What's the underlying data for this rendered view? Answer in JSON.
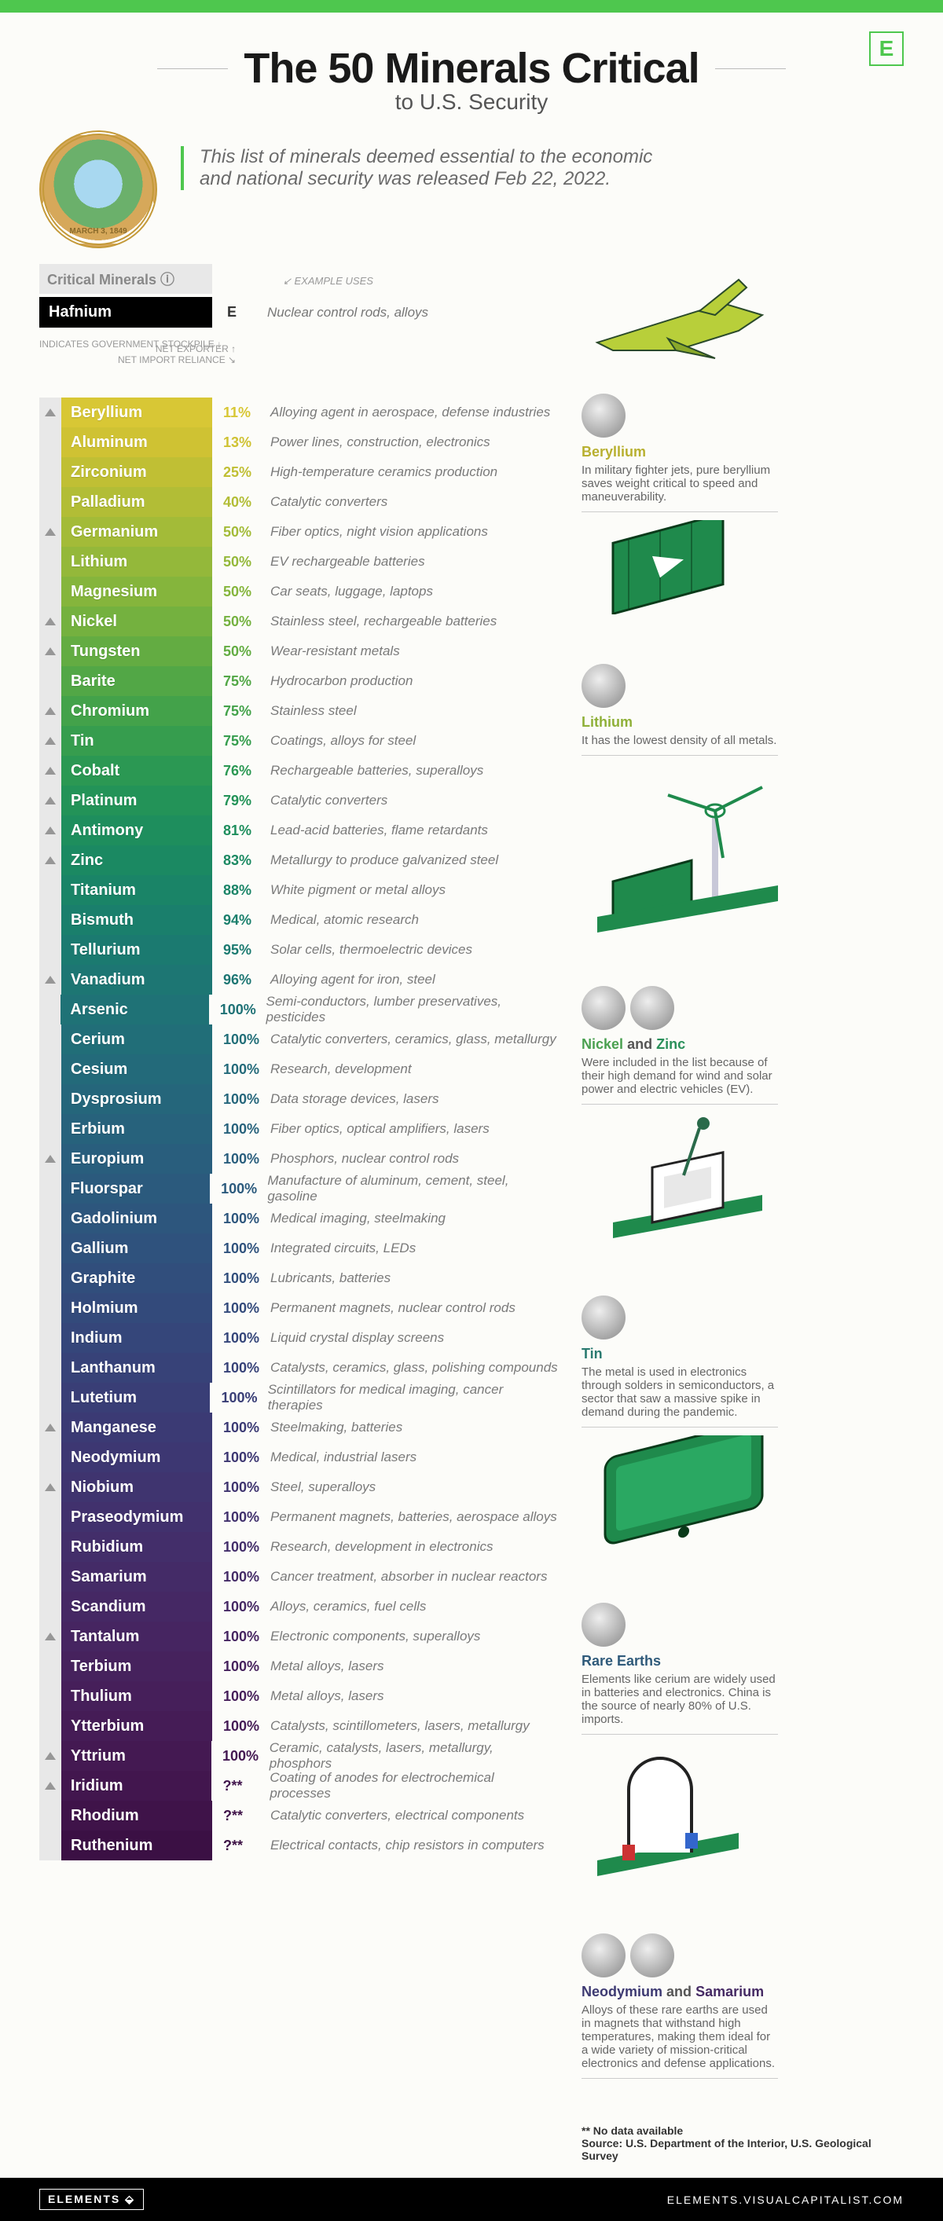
{
  "header": {
    "title": "The 50 Minerals Critical",
    "subtitle": "to U.S. Security",
    "intro": "This list of minerals deemed essential to the economic and national security was released Feb 22, 2022.",
    "seal_text": "MARCH 3, 1849",
    "logo_letter": "E"
  },
  "legend": {
    "tab": "Critical Minerals ⓘ",
    "example_uses_label": "EXAMPLE USES",
    "stockpile_label": "INDICATES\nGOVERNMENT\nSTOCKPILE\n↓",
    "net_exporter_label": "NET EXPORTER ↑",
    "net_import_label": "NET IMPORT RELIANCE ↘"
  },
  "example_row": {
    "name": "Hafnium",
    "badge": "E",
    "use": "Nuclear control rods, alloys"
  },
  "rows": [
    {
      "name": "Beryllium",
      "pct": "11%",
      "use": "Alloying agent in aerospace, defense industries",
      "color": "#d8c735",
      "stock": true
    },
    {
      "name": "Aluminum",
      "pct": "13%",
      "use": "Power lines, construction, electronics",
      "color": "#cfc233",
      "stock": false
    },
    {
      "name": "Zirconium",
      "pct": "25%",
      "use": "High-temperature ceramics production",
      "color": "#c0bf34",
      "stock": false
    },
    {
      "name": "Palladium",
      "pct": "40%",
      "use": "Catalytic converters",
      "color": "#b2bd36",
      "stock": false
    },
    {
      "name": "Germanium",
      "pct": "50%",
      "use": "Fiber optics, night vision applications",
      "color": "#a3bb38",
      "stock": true
    },
    {
      "name": "Lithium",
      "pct": "50%",
      "use": "EV rechargeable batteries",
      "color": "#94b83a",
      "stock": false
    },
    {
      "name": "Magnesium",
      "pct": "50%",
      "use": "Car seats, luggage, laptops",
      "color": "#85b53c",
      "stock": false
    },
    {
      "name": "Nickel",
      "pct": "50%",
      "use": "Stainless steel, rechargeable batteries",
      "color": "#74b13f",
      "stock": true
    },
    {
      "name": "Tungsten",
      "pct": "50%",
      "use": "Wear-resistant metals",
      "color": "#63ac42",
      "stock": true
    },
    {
      "name": "Barite",
      "pct": "75%",
      "use": "Hydrocarbon production",
      "color": "#52a746",
      "stock": false
    },
    {
      "name": "Chromium",
      "pct": "75%",
      "use": "Stainless steel",
      "color": "#43a24a",
      "stock": true
    },
    {
      "name": "Tin",
      "pct": "75%",
      "use": "Coatings, alloys for steel",
      "color": "#369d4e",
      "stock": true
    },
    {
      "name": "Cobalt",
      "pct": "76%",
      "use": "Rechargeable batteries, superalloys",
      "color": "#2b9853",
      "stock": true
    },
    {
      "name": "Platinum",
      "pct": "79%",
      "use": "Catalytic converters",
      "color": "#239358",
      "stock": true
    },
    {
      "name": "Antimony",
      "pct": "81%",
      "use": "Lead-acid batteries, flame retardants",
      "color": "#1e8e5d",
      "stock": true
    },
    {
      "name": "Zinc",
      "pct": "83%",
      "use": "Metallurgy to produce galvanized steel",
      "color": "#1b8962",
      "stock": true
    },
    {
      "name": "Titanium",
      "pct": "88%",
      "use": "White pigment or metal alloys",
      "color": "#1a8467",
      "stock": false
    },
    {
      "name": "Bismuth",
      "pct": "94%",
      "use": "Medical, atomic research",
      "color": "#1a7f6c",
      "stock": false
    },
    {
      "name": "Tellurium",
      "pct": "95%",
      "use": "Solar cells, thermoelectric devices",
      "color": "#1b7a70",
      "stock": false
    },
    {
      "name": "Vanadium",
      "pct": "96%",
      "use": "Alloying agent for iron, steel",
      "color": "#1d7673",
      "stock": true
    },
    {
      "name": "Arsenic",
      "pct": "100%",
      "use": "Semi-conductors, lumber preservatives, pesticides",
      "color": "#1f7276",
      "stock": false
    },
    {
      "name": "Cerium",
      "pct": "100%",
      "use": "Catalytic converters, ceramics, glass, metallurgy",
      "color": "#216e78",
      "stock": false
    },
    {
      "name": "Cesium",
      "pct": "100%",
      "use": "Research, development",
      "color": "#236a7a",
      "stock": false
    },
    {
      "name": "Dysprosium",
      "pct": "100%",
      "use": "Data storage devices, lasers",
      "color": "#25667b",
      "stock": false
    },
    {
      "name": "Erbium",
      "pct": "100%",
      "use": "Fiber optics, optical amplifiers, lasers",
      "color": "#27627c",
      "stock": false
    },
    {
      "name": "Europium",
      "pct": "100%",
      "use": "Phosphors, nuclear control rods",
      "color": "#295e7d",
      "stock": true
    },
    {
      "name": "Fluorspar",
      "pct": "100%",
      "use": "Manufacture of aluminum, cement, steel, gasoline",
      "color": "#2b5a7d",
      "stock": false
    },
    {
      "name": "Gadolinium",
      "pct": "100%",
      "use": "Medical imaging, steelmaking",
      "color": "#2d567d",
      "stock": false
    },
    {
      "name": "Gallium",
      "pct": "100%",
      "use": "Integrated circuits, LEDs",
      "color": "#2f527d",
      "stock": false
    },
    {
      "name": "Graphite",
      "pct": "100%",
      "use": "Lubricants, batteries",
      "color": "#314e7c",
      "stock": false
    },
    {
      "name": "Holmium",
      "pct": "100%",
      "use": "Permanent magnets, nuclear control rods",
      "color": "#334a7b",
      "stock": false
    },
    {
      "name": "Indium",
      "pct": "100%",
      "use": "Liquid crystal display screens",
      "color": "#35467a",
      "stock": false
    },
    {
      "name": "Lanthanum",
      "pct": "100%",
      "use": "Catalysts, ceramics, glass, polishing compounds",
      "color": "#374278",
      "stock": false
    },
    {
      "name": "Lutetium",
      "pct": "100%",
      "use": "Scintillators for medical imaging, cancer therapies",
      "color": "#393e76",
      "stock": false
    },
    {
      "name": "Manganese",
      "pct": "100%",
      "use": "Steelmaking, batteries",
      "color": "#3b3a74",
      "stock": true
    },
    {
      "name": "Neodymium",
      "pct": "100%",
      "use": "Medical, industrial lasers",
      "color": "#3d3772",
      "stock": false
    },
    {
      "name": "Niobium",
      "pct": "100%",
      "use": "Steel, superalloys",
      "color": "#3f346f",
      "stock": true
    },
    {
      "name": "Praseodymium",
      "pct": "100%",
      "use": "Permanent magnets, batteries, aerospace alloys",
      "color": "#41316d",
      "stock": false
    },
    {
      "name": "Rubidium",
      "pct": "100%",
      "use": "Research, development in electronics",
      "color": "#432e6a",
      "stock": false
    },
    {
      "name": "Samarium",
      "pct": "100%",
      "use": "Cancer treatment, absorber in nuclear reactors",
      "color": "#442b67",
      "stock": false
    },
    {
      "name": "Scandium",
      "pct": "100%",
      "use": "Alloys, ceramics, fuel cells",
      "color": "#452864",
      "stock": false
    },
    {
      "name": "Tantalum",
      "pct": "100%",
      "use": "Electronic components, superalloys",
      "color": "#462561",
      "stock": true
    },
    {
      "name": "Terbium",
      "pct": "100%",
      "use": "Metal alloys, lasers",
      "color": "#46225d",
      "stock": false
    },
    {
      "name": "Thulium",
      "pct": "100%",
      "use": "Metal alloys, lasers",
      "color": "#461f5a",
      "stock": false
    },
    {
      "name": "Ytterbium",
      "pct": "100%",
      "use": "Catalysts, scintillometers, lasers, metallurgy",
      "color": "#451c56",
      "stock": false
    },
    {
      "name": "Yttrium",
      "pct": "100%",
      "use": "Ceramic, catalysts, lasers, metallurgy, phosphors",
      "color": "#441952",
      "stock": true
    },
    {
      "name": "Iridium",
      "pct": "?**",
      "use": "Coating of anodes for electrochemical processes",
      "color": "#42164e",
      "stock": true
    },
    {
      "name": "Rhodium",
      "pct": "?**",
      "use": "Catalytic converters, electrical components",
      "color": "#3f1349",
      "stock": false
    },
    {
      "name": "Ruthenium",
      "pct": "?**",
      "use": "Electrical contacts, chip resistors in computers",
      "color": "#3b1044",
      "stock": false
    }
  ],
  "callouts": [
    {
      "title_html": "<span style='color:#b8b030'>Beryllium</span>",
      "body": "In military fighter jets, pure beryllium saves weight critical to speed and maneuverability."
    },
    {
      "title_html": "<span style='color:#8fb038'>Lithium</span>",
      "body": "It has the lowest density of all metals."
    },
    {
      "title_html": "<span style='color:#4aa050'>Nickel</span> <span style='color:#555'>and</span> <span style='color:#2a905a'>Zinc</span>",
      "body": "Were included in the list because of their high demand for wind and solar power and electric vehicles (EV)."
    },
    {
      "title_html": "<span style='color:#2a7a70'>Tin</span>",
      "body": "The metal is used in electronics through solders in semiconductors, a sector that saw a massive spike in demand during the pandemic."
    },
    {
      "title_html": "<span style='color:#2f5a7a'>Rare Earths</span>",
      "body": "Elements like cerium are widely used in batteries and electronics. China is the source of nearly 80% of U.S. imports."
    },
    {
      "title_html": "<span style='color:#3d3a72'>Neodymium</span> <span style='color:#555'>and</span> <span style='color:#452a64'>Samarium</span>",
      "body": "Alloys of these rare earths are used in magnets that withstand high temperatures, making them ideal for a wide variety of mission-critical electronics and defense applications."
    }
  ],
  "footnotes": {
    "nodata": "** No data available",
    "source": "Source: U.S. Department of the Interior, U.S. Geological Survey"
  },
  "footer": {
    "brand": "ELEMENTS ⬙",
    "url": "ELEMENTS.VISUALCAPITALIST.COM"
  }
}
